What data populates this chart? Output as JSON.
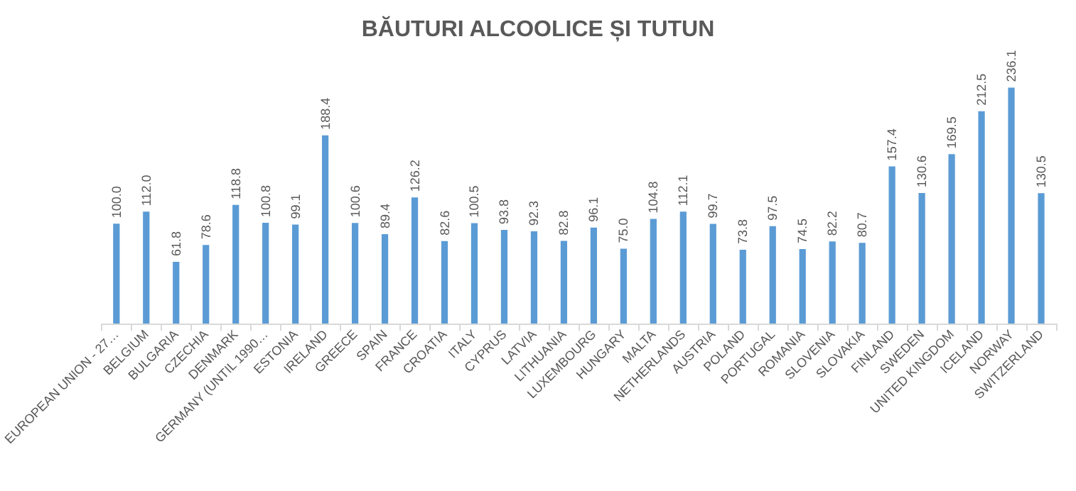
{
  "chart_data": {
    "type": "bar",
    "title": "BĂUTURI ALCOOLICE ȘI TUTUN",
    "categories": [
      "EUROPEAN UNION - 27…",
      "BELGIUM",
      "BULGARIA",
      "CZECHIA",
      "DENMARK",
      "GERMANY (UNTIL 1990…",
      "ESTONIA",
      "IRELAND",
      "GREECE",
      "SPAIN",
      "FRANCE",
      "CROATIA",
      "ITALY",
      "CYPRUS",
      "LATVIA",
      "LITHUANIA",
      "LUXEMBOURG",
      "HUNGARY",
      "MALTA",
      "NETHERLANDS",
      "AUSTRIA",
      "POLAND",
      "PORTUGAL",
      "ROMANIA",
      "SLOVENIA",
      "SLOVAKIA",
      "FINLAND",
      "SWEDEN",
      "UNITED KINGDOM",
      "ICELAND",
      "NORWAY",
      "SWITZERLAND"
    ],
    "values": [
      100.0,
      112.0,
      61.8,
      78.6,
      118.8,
      100.8,
      99.1,
      188.4,
      100.6,
      89.4,
      126.2,
      82.6,
      100.5,
      93.8,
      92.3,
      82.8,
      96.1,
      75.0,
      104.8,
      112.1,
      99.7,
      73.8,
      97.5,
      74.5,
      82.2,
      80.7,
      157.4,
      130.6,
      169.5,
      212.5,
      236.1,
      130.5
    ],
    "value_labels": [
      "100.0",
      "112.0",
      "61.8",
      "78.6",
      "118.8",
      "100.8",
      "99.1",
      "188.4",
      "100.6",
      "89.4",
      "126.2",
      "82.6",
      "100.5",
      "93.8",
      "92.3",
      "82.8",
      "96.1",
      "75.0",
      "104.8",
      "112.1",
      "99.7",
      "73.8",
      "97.5",
      "74.5",
      "82.2",
      "80.7",
      "157.4",
      "130.6",
      "169.5",
      "212.5",
      "236.1",
      "130.5"
    ],
    "color": "#5b9bd5"
  }
}
